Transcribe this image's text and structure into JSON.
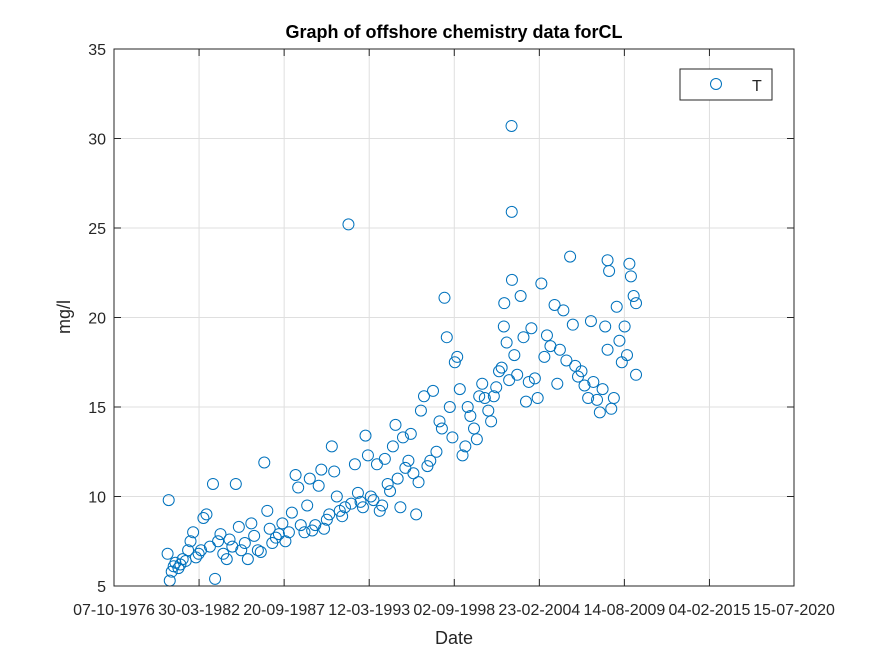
{
  "chart_data": {
    "type": "scatter",
    "title": "Graph of offshore chemistry data forCL",
    "xlabel": "Date",
    "ylabel": "mg/l",
    "xlim": [
      "07-10-1976",
      "15-07-2020"
    ],
    "ylim": [
      5,
      35
    ],
    "yticks": [
      5,
      10,
      15,
      20,
      25,
      30,
      35
    ],
    "xticks": [
      "07-10-1976",
      "30-03-1982",
      "20-09-1987",
      "12-03-1993",
      "02-09-1998",
      "23-02-2004",
      "14-08-2009",
      "04-02-2015",
      "15-07-2020"
    ],
    "grid": true,
    "legend_position": "top-right",
    "colors": {
      "series": "#0072bd",
      "grid": "#dfdfdf",
      "axis": "#262626"
    },
    "series": [
      {
        "name": "T",
        "marker": "circle",
        "points": [
          [
            "15-04-1980",
            9.8
          ],
          [
            "20-03-1980",
            6.8
          ],
          [
            "10-05-1980",
            5.3
          ],
          [
            "25-06-1980",
            5.8
          ],
          [
            "10-08-1980",
            6.1
          ],
          [
            "20-09-1980",
            6.3
          ],
          [
            "30-11-1980",
            6.0
          ],
          [
            "15-01-1981",
            6.2
          ],
          [
            "10-03-1981",
            6.5
          ],
          [
            "20-05-1981",
            6.4
          ],
          [
            "15-07-1981",
            7.0
          ],
          [
            "10-09-1981",
            7.5
          ],
          [
            "10-11-1981",
            8.0
          ],
          [
            "15-01-1982",
            6.6
          ],
          [
            "20-03-1982",
            6.8
          ],
          [
            "15-05-1982",
            7.0
          ],
          [
            "10-07-1982",
            8.8
          ],
          [
            "20-09-1982",
            9.0
          ],
          [
            "10-12-1982",
            7.2
          ],
          [
            "20-02-1983",
            10.7
          ],
          [
            "10-04-1983",
            5.4
          ],
          [
            "20-06-1983",
            7.5
          ],
          [
            "15-08-1983",
            7.9
          ],
          [
            "20-10-1983",
            6.8
          ],
          [
            "10-01-1984",
            6.5
          ],
          [
            "15-03-1984",
            7.6
          ],
          [
            "20-05-1984",
            7.2
          ],
          [
            "10-08-1984",
            10.7
          ],
          [
            "20-10-1984",
            8.3
          ],
          [
            "15-12-1984",
            7.0
          ],
          [
            "10-03-1985",
            7.4
          ],
          [
            "20-05-1985",
            6.5
          ],
          [
            "10-08-1985",
            8.5
          ],
          [
            "15-10-1985",
            7.8
          ],
          [
            "10-01-1986",
            7.0
          ],
          [
            "20-03-1986",
            6.9
          ],
          [
            "10-06-1986",
            11.9
          ],
          [
            "20-08-1986",
            9.2
          ],
          [
            "15-10-1986",
            8.2
          ],
          [
            "15-12-1986",
            7.4
          ],
          [
            "10-03-1987",
            7.7
          ],
          [
            "20-05-1987",
            7.9
          ],
          [
            "10-08-1987",
            8.5
          ],
          [
            "20-10-1987",
            7.5
          ],
          [
            "10-01-1988",
            8.0
          ],
          [
            "20-03-1988",
            9.1
          ],
          [
            "15-06-1988",
            11.2
          ],
          [
            "15-08-1988",
            10.5
          ],
          [
            "15-10-1988",
            8.4
          ],
          [
            "10-01-1989",
            8.0
          ],
          [
            "15-03-1989",
            9.5
          ],
          [
            "15-05-1989",
            11.0
          ],
          [
            "10-07-1989",
            8.1
          ],
          [
            "20-09-1989",
            8.4
          ],
          [
            "10-12-1989",
            10.6
          ],
          [
            "10-02-1990",
            11.5
          ],
          [
            "15-04-1990",
            8.2
          ],
          [
            "20-06-1990",
            8.7
          ],
          [
            "15-08-1990",
            9.0
          ],
          [
            "15-10-1990",
            12.8
          ],
          [
            "10-12-1990",
            11.4
          ],
          [
            "10-02-1991",
            10.0
          ],
          [
            "20-04-1991",
            9.2
          ],
          [
            "15-06-1991",
            8.9
          ],
          [
            "20-08-1991",
            9.4
          ],
          [
            "10-11-1991",
            25.2
          ],
          [
            "15-01-1992",
            9.6
          ],
          [
            "10-04-1992",
            11.8
          ],
          [
            "20-06-1992",
            10.2
          ],
          [
            "20-08-1992",
            9.7
          ],
          [
            "15-10-1992",
            9.4
          ],
          [
            "15-12-1992",
            13.4
          ],
          [
            "10-02-1993",
            12.3
          ],
          [
            "20-04-1993",
            10.0
          ],
          [
            "20-06-1993",
            9.8
          ],
          [
            "10-09-1993",
            11.8
          ],
          [
            "15-11-1993",
            9.2
          ],
          [
            "10-01-1994",
            9.5
          ],
          [
            "15-03-1994",
            12.1
          ],
          [
            "20-05-1994",
            10.7
          ],
          [
            "15-07-1994",
            10.3
          ],
          [
            "20-09-1994",
            12.8
          ],
          [
            "20-11-1994",
            14.0
          ],
          [
            "10-01-1995",
            11.0
          ],
          [
            "15-03-1995",
            9.4
          ],
          [
            "15-05-1995",
            13.3
          ],
          [
            "10-07-1995",
            11.6
          ],
          [
            "20-09-1995",
            12.0
          ],
          [
            "15-11-1995",
            13.5
          ],
          [
            "15-01-1996",
            11.3
          ],
          [
            "20-03-1996",
            9.0
          ],
          [
            "15-05-1996",
            10.8
          ],
          [
            "10-07-1996",
            14.8
          ],
          [
            "20-09-1996",
            15.6
          ],
          [
            "10-12-1996",
            11.7
          ],
          [
            "15-02-1997",
            12.0
          ],
          [
            "20-04-1997",
            15.9
          ],
          [
            "10-07-1997",
            12.5
          ],
          [
            "20-09-1997",
            14.2
          ],
          [
            "15-11-1997",
            13.8
          ],
          [
            "15-01-1998",
            21.1
          ],
          [
            "10-03-1998",
            18.9
          ],
          [
            "20-05-1998",
            15.0
          ],
          [
            "20-07-1998",
            13.3
          ],
          [
            "15-09-1998",
            17.5
          ],
          [
            "10-11-1998",
            17.8
          ],
          [
            "10-01-1999",
            16.0
          ],
          [
            "15-03-1999",
            12.3
          ],
          [
            "20-05-1999",
            12.8
          ],
          [
            "15-07-1999",
            15.0
          ],
          [
            "15-09-1999",
            14.5
          ],
          [
            "10-12-1999",
            13.8
          ],
          [
            "15-02-2000",
            13.2
          ],
          [
            "10-04-2000",
            15.6
          ],
          [
            "20-06-2000",
            16.3
          ],
          [
            "20-08-2000",
            15.5
          ],
          [
            "10-11-2000",
            14.8
          ],
          [
            "15-01-2001",
            14.2
          ],
          [
            "20-03-2001",
            15.6
          ],
          [
            "15-05-2001",
            16.1
          ],
          [
            "20-07-2001",
            17.0
          ],
          [
            "20-09-2001",
            17.2
          ],
          [
            "10-11-2001",
            19.5
          ],
          [
            "20-11-2001",
            20.8
          ],
          [
            "15-01-2002",
            18.6
          ],
          [
            "15-03-2002",
            16.5
          ],
          [
            "10-05-2002",
            30.7
          ],
          [
            "15-05-2002",
            25.9
          ],
          [
            "20-05-2002",
            22.1
          ],
          [
            "15-07-2002",
            17.9
          ],
          [
            "20-09-2002",
            16.8
          ],
          [
            "10-12-2002",
            21.2
          ],
          [
            "15-02-2003",
            18.9
          ],
          [
            "15-04-2003",
            15.3
          ],
          [
            "20-06-2003",
            16.4
          ],
          [
            "20-08-2003",
            19.4
          ],
          [
            "10-11-2003",
            16.6
          ],
          [
            "15-01-2004",
            15.5
          ],
          [
            "10-04-2004",
            21.9
          ],
          [
            "20-06-2004",
            17.8
          ],
          [
            "20-08-2004",
            19.0
          ],
          [
            "10-11-2004",
            18.4
          ],
          [
            "15-02-2005",
            20.7
          ],
          [
            "20-04-2005",
            16.3
          ],
          [
            "20-06-2005",
            18.2
          ],
          [
            "10-09-2005",
            20.4
          ],
          [
            "20-11-2005",
            17.6
          ],
          [
            "15-02-2006",
            23.4
          ],
          [
            "20-04-2006",
            19.6
          ],
          [
            "15-06-2006",
            17.3
          ],
          [
            "20-08-2006",
            16.7
          ],
          [
            "10-11-2006",
            17.0
          ],
          [
            "20-01-2007",
            16.2
          ],
          [
            "15-04-2007",
            15.5
          ],
          [
            "20-06-2007",
            19.8
          ],
          [
            "15-08-2007",
            16.4
          ],
          [
            "10-11-2007",
            15.4
          ],
          [
            "15-01-2008",
            14.7
          ],
          [
            "20-03-2008",
            16.0
          ],
          [
            "20-05-2008",
            19.5
          ],
          [
            "15-07-2008",
            18.2
          ],
          [
            "15-07-2008",
            23.2
          ],
          [
            "20-08-2008",
            22.6
          ],
          [
            "10-10-2008",
            14.9
          ],
          [
            "10-12-2008",
            15.5
          ],
          [
            "15-02-2009",
            20.6
          ],
          [
            "20-04-2009",
            18.7
          ],
          [
            "15-06-2009",
            17.5
          ],
          [
            "20-08-2009",
            19.5
          ],
          [
            "15-10-2009",
            17.9
          ],
          [
            "10-12-2009",
            23.0
          ],
          [
            "15-01-2010",
            22.3
          ],
          [
            "20-03-2010",
            21.2
          ],
          [
            "15-05-2010",
            20.8
          ],
          [
            "15-05-2010",
            16.8
          ]
        ]
      }
    ]
  }
}
